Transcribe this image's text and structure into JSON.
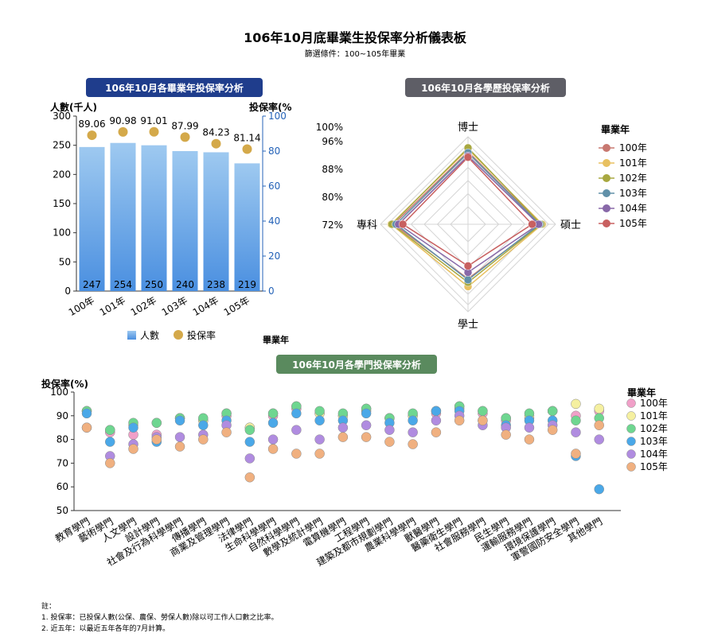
{
  "page": {
    "title": "106年10月底畢業生投保率分析儀表板",
    "filter": "篩選條件：100~105年畢業"
  },
  "colors": {
    "bar_top": "#9ec9f0",
    "bar_bottom": "#4a8fe0",
    "rate_dot": "#d4a94a",
    "axis_right": "#2563b8",
    "header_bar_chart": "#1f3d8c",
    "header_radar": "#5e5e66",
    "header_dept": "#5a8a5e",
    "series": {
      "100年": "#f0a0c8",
      "101年": "#f5f0a0",
      "102年": "#6ed690",
      "103年": "#4aa8e8",
      "104年": "#b08ce0",
      "105年": "#f0b080"
    },
    "radar_series": {
      "100年": "#c87870",
      "101年": "#e8c060",
      "102年": "#a8a840",
      "103年": "#6090a8",
      "104年": "#8868a8",
      "105年": "#c86060"
    }
  },
  "chart_data": [
    {
      "type": "bar",
      "header": "106年10月各畢業年投保率分析",
      "ylabel_left": "人數(千人)",
      "ylabel_right": "投保率(%",
      "xlabel": "畢業年",
      "categories": [
        "100年",
        "101年",
        "102年",
        "103年",
        "104年",
        "105年"
      ],
      "series": [
        {
          "name": "人數",
          "kind": "bar",
          "axis": "left",
          "values": [
            247,
            254,
            250,
            240,
            238,
            219
          ]
        },
        {
          "name": "投保率",
          "kind": "point",
          "axis": "right",
          "values": [
            89.06,
            90.98,
            91.01,
            87.99,
            84.23,
            81.14
          ]
        }
      ],
      "ylim_left": [
        0,
        300
      ],
      "yticks_left": [
        0,
        50,
        100,
        150,
        200,
        250,
        300
      ],
      "ylim_right": [
        0,
        100
      ],
      "yticks_right": [
        0,
        20,
        40,
        60,
        80,
        100
      ],
      "legend": [
        "人數",
        "投保率"
      ],
      "legend_position": "bottom"
    },
    {
      "type": "radar",
      "header": "106年10月各學歷投保率分析",
      "axes": [
        "博士",
        "碩士",
        "學士",
        "專科"
      ],
      "ring_labels": [
        "72%",
        "80%",
        "88%",
        "96%",
        "100%"
      ],
      "rmin": 72,
      "rmax": 100,
      "legend_title": "畢業年",
      "legend_position": "right",
      "series": [
        {
          "name": "100年",
          "values": [
            93.0,
            93.0,
            84.5,
            93.8
          ]
        },
        {
          "name": "101年",
          "values": [
            94.2,
            93.8,
            88.2,
            95.0
          ]
        },
        {
          "name": "102年",
          "values": [
            94.8,
            93.2,
            86.2,
            94.6
          ]
        },
        {
          "name": "103年",
          "values": [
            92.5,
            92.5,
            85.0,
            92.7
          ]
        },
        {
          "name": "104年",
          "values": [
            91.0,
            92.0,
            81.5,
            91.5
          ]
        },
        {
          "name": "105年",
          "values": [
            90.4,
            89.0,
            78.5,
            89.5
          ]
        }
      ]
    },
    {
      "type": "scatter",
      "header": "106年10月各學門投保率分析",
      "ylabel": "投保率(%)",
      "ylim": [
        50,
        100
      ],
      "yticks": [
        50,
        60,
        70,
        80,
        90,
        100
      ],
      "legend_title": "畢業年",
      "legend_position": "right",
      "categories": [
        "教育學門",
        "藝術學門",
        "人文學門",
        "設計學門",
        "社會及行為科學學門",
        "傳播學門",
        "商業及管理學門",
        "法律學門",
        "生命科學學門",
        "自然科學學門",
        "數學及統計學門",
        "電算機學門",
        "工程學門",
        "建築及都市規劃學門",
        "農業科學學門",
        "獸醫學門",
        "醫藥衛生學門",
        "社會服務學門",
        "民生學門",
        "運輸服務學門",
        "環境保護學門",
        "軍警國防安全學門",
        "其他學門"
      ],
      "series": [
        {
          "name": "100年",
          "values": [
            92,
            83,
            82,
            82,
            89,
            88,
            90,
            85,
            90,
            93,
            91,
            90,
            92,
            89,
            90,
            91,
            93,
            91,
            88,
            89,
            92,
            90,
            92
          ]
        },
        {
          "name": "101年",
          "values": [
            92,
            84,
            86,
            87,
            89,
            88,
            91,
            85,
            91,
            94,
            91,
            90,
            93,
            89,
            90,
            92,
            94,
            92,
            89,
            90,
            92,
            95,
            93
          ]
        },
        {
          "name": "102年",
          "values": [
            92,
            84,
            87,
            87,
            89,
            89,
            91,
            84,
            91,
            94,
            92,
            91,
            93,
            89,
            91,
            92,
            94,
            92,
            89,
            91,
            92,
            88,
            89
          ]
        },
        {
          "name": "103年",
          "values": [
            91,
            79,
            85,
            79,
            88,
            86,
            88,
            79,
            87,
            91,
            88,
            88,
            91,
            87,
            88,
            92,
            92,
            88,
            86,
            88,
            88,
            73,
            59
          ]
        },
        {
          "name": "104年",
          "values": [
            85,
            73,
            78,
            81,
            81,
            82,
            86,
            72,
            80,
            84,
            80,
            85,
            86,
            84,
            83,
            88,
            90,
            86,
            85,
            85,
            86,
            83,
            80
          ]
        },
        {
          "name": "105年",
          "values": [
            85,
            70,
            76,
            80,
            77,
            80,
            83,
            64,
            76,
            74,
            74,
            81,
            81,
            79,
            78,
            83,
            88,
            88,
            82,
            80,
            84,
            74,
            86
          ]
        }
      ]
    }
  ],
  "notes": {
    "heading": "註：",
    "lines": [
      "1. 投保率：已投保人數(公保、農保、勞保人數)除以可工作人口數之比率。",
      "2. 近五年：以最近五年各年的7月計算。"
    ]
  }
}
